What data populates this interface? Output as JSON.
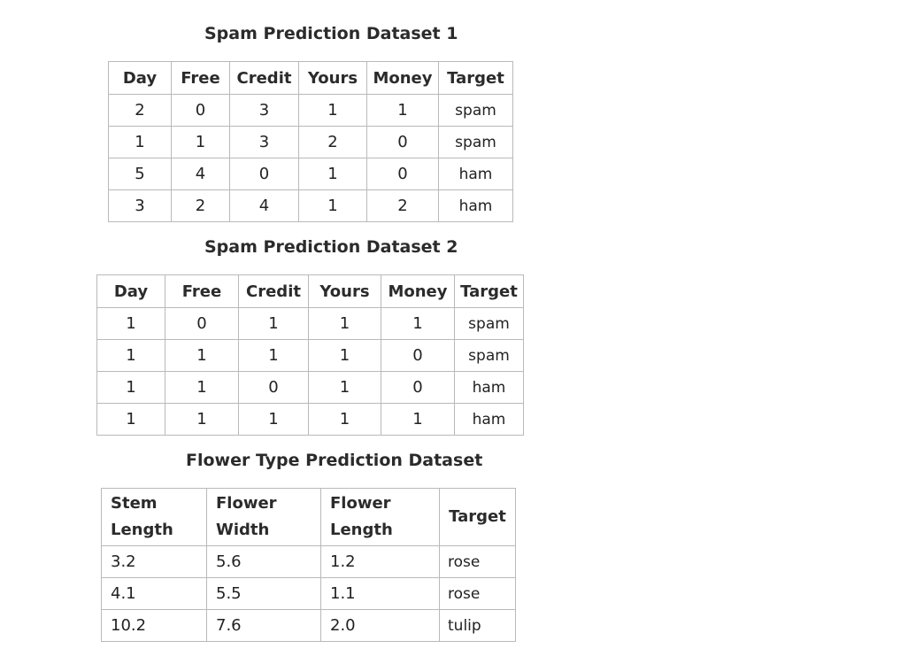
{
  "dataset1": {
    "title": "Spam Prediction Dataset 1",
    "headers": [
      "Day",
      "Free",
      "Credit",
      "Yours",
      "Money",
      "Target"
    ],
    "rows": [
      [
        "2",
        "0",
        "3",
        "1",
        "1",
        "spam"
      ],
      [
        "1",
        "1",
        "3",
        "2",
        "0",
        "spam"
      ],
      [
        "5",
        "4",
        "0",
        "1",
        "0",
        "ham"
      ],
      [
        "3",
        "2",
        "4",
        "1",
        "2",
        "ham"
      ]
    ]
  },
  "dataset2": {
    "title": "Spam Prediction Dataset 2",
    "headers": [
      "Day",
      "Free",
      "Credit",
      "Yours",
      "Money",
      "Target"
    ],
    "rows": [
      [
        "1",
        "0",
        "1",
        "1",
        "1",
        "spam"
      ],
      [
        "1",
        "1",
        "1",
        "1",
        "0",
        "spam"
      ],
      [
        "1",
        "1",
        "0",
        "1",
        "0",
        "ham"
      ],
      [
        "1",
        "1",
        "1",
        "1",
        "1",
        "ham"
      ]
    ]
  },
  "dataset3": {
    "title": "Flower Type Prediction Dataset",
    "headers": [
      [
        "Stem",
        "Length"
      ],
      [
        "Flower",
        "Width"
      ],
      [
        "Flower",
        "Length"
      ],
      [
        "Target"
      ]
    ],
    "rows": [
      [
        "3.2",
        "5.6",
        "1.2",
        "rose"
      ],
      [
        "4.1",
        "5.5",
        "1.1",
        "rose"
      ],
      [
        "10.2",
        "7.6",
        "2.0",
        "tulip"
      ]
    ]
  }
}
